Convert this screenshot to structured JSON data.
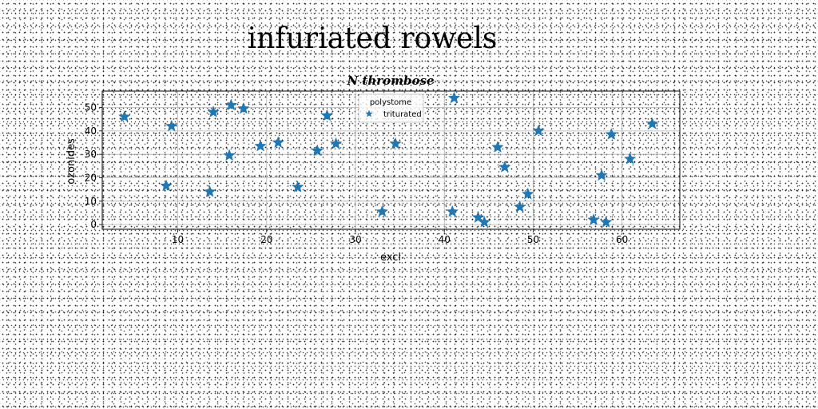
{
  "suptitle": "infuriated rowels",
  "chart_data": {
    "type": "scatter",
    "title": "N thrombose",
    "xlabel": "excl",
    "ylabel": "ozonides",
    "xlim": [
      1.5,
      66.5
    ],
    "ylim": [
      -2,
      57
    ],
    "xticks": [
      10,
      20,
      30,
      40,
      50,
      60
    ],
    "yticks": [
      0,
      10,
      20,
      30,
      40,
      50
    ],
    "grid": true,
    "marker": "star",
    "color": "#1f77b4",
    "legend": {
      "title": "polystome",
      "position": "top-center"
    },
    "series": [
      {
        "name": "triturated",
        "points": [
          [
            4.0,
            46
          ],
          [
            8.7,
            16.5
          ],
          [
            9.3,
            42
          ],
          [
            13.6,
            14
          ],
          [
            14.0,
            48
          ],
          [
            15.8,
            29.5
          ],
          [
            16.0,
            51
          ],
          [
            17.4,
            49.5
          ],
          [
            19.3,
            33.5
          ],
          [
            21.3,
            35
          ],
          [
            23.5,
            16
          ],
          [
            25.7,
            31.5
          ],
          [
            26.8,
            46.5
          ],
          [
            27.8,
            34.5
          ],
          [
            33.0,
            5.5
          ],
          [
            34.5,
            34.5
          ],
          [
            40.9,
            5.5
          ],
          [
            41.1,
            54
          ],
          [
            43.8,
            3
          ],
          [
            44.5,
            1
          ],
          [
            46.0,
            33
          ],
          [
            46.8,
            24.5
          ],
          [
            48.5,
            7.5
          ],
          [
            49.4,
            13
          ],
          [
            50.6,
            40
          ],
          [
            56.8,
            2
          ],
          [
            57.7,
            21
          ],
          [
            58.2,
            1
          ],
          [
            58.8,
            38.5
          ],
          [
            60.9,
            28
          ],
          [
            63.4,
            43
          ]
        ]
      }
    ]
  }
}
